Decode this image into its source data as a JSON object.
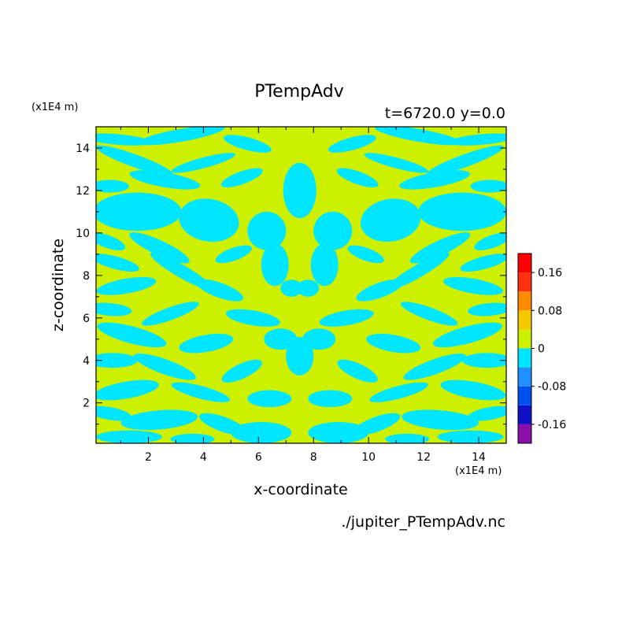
{
  "chart_data": {
    "type": "heatmap",
    "title": "PTempAdv",
    "subtitle": "t=6720.0 y=0.0",
    "xlabel": "x-coordinate",
    "ylabel": "z-coordinate",
    "x_unit": "(x1E4 m)",
    "y_unit": "(x1E4 m)",
    "footer": "./jupiter_PTempAdv.nc",
    "xlim": [
      0.1,
      15
    ],
    "ylim": [
      0.1,
      15
    ],
    "x_ticks": [
      2,
      4,
      6,
      8,
      10,
      12,
      14
    ],
    "y_ticks": [
      2,
      4,
      6,
      8,
      10,
      12,
      14
    ],
    "pattern": "mirror-symmetric about x=7.5; field values are mostly in the two bins adjacent to 0",
    "colorbar": {
      "levels": [
        -0.2,
        -0.16,
        -0.12,
        -0.08,
        -0.04,
        0,
        0.04,
        0.08,
        0.12,
        0.16,
        0.2
      ],
      "colors": [
        "#8a0fa8",
        "#1010c8",
        "#0050f0",
        "#1e90ff",
        "#00e6ff",
        "#ccf000",
        "#f5c800",
        "#ff8c00",
        "#ff3010",
        "#ff0000",
        "#ffb0b0"
      ],
      "tick_labels": [
        "0.16",
        "0.08",
        "0",
        "-0.08",
        "-0.16"
      ],
      "tick_values": [
        0.16,
        0.08,
        0,
        -0.08,
        -0.16
      ]
    },
    "grid": false,
    "legend": "colorbar-right"
  }
}
